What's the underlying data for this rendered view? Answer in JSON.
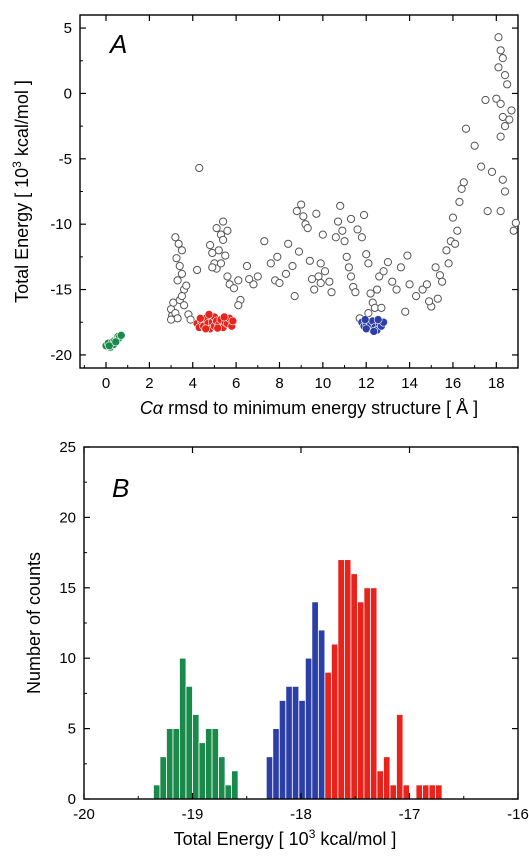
{
  "colors": {
    "green": "#1a8a4a",
    "red": "#e8231c",
    "blue": "#2b3fa6",
    "grey": "#555555",
    "axis": "#000000"
  },
  "chart_data": [
    {
      "type": "scatter",
      "panel_label": "A",
      "xlabel_prefix": "Cα",
      "xlabel_main": " rmsd to minimum energy structure  [ Å ]",
      "ylabel_pre": "Total Energy  [ 10",
      "ylabel_sup": "3",
      "ylabel_post": " kcal/mol ]",
      "xlim": [
        -1.2,
        19
      ],
      "ylim": [
        -21,
        6
      ],
      "xticks": [
        0,
        2,
        4,
        6,
        8,
        10,
        12,
        14,
        16,
        18
      ],
      "yticks": [
        -20,
        -15,
        -10,
        -5,
        0,
        5
      ],
      "series": [
        {
          "color_key": "grey",
          "filled": false,
          "points": [
            [
              3.0,
              -16.5
            ],
            [
              3.05,
              -17.0
            ],
            [
              3.1,
              -16.0
            ],
            [
              3.2,
              -16.8
            ],
            [
              3.3,
              -17.2
            ],
            [
              3.0,
              -17.3
            ],
            [
              3.4,
              -15.8
            ],
            [
              3.2,
              -11.0
            ],
            [
              3.35,
              -11.5
            ],
            [
              3.5,
              -12.0
            ],
            [
              3.25,
              -12.6
            ],
            [
              3.4,
              -13.2
            ],
            [
              3.5,
              -13.8
            ],
            [
              3.3,
              -14.3
            ],
            [
              3.6,
              -15.0
            ],
            [
              3.5,
              -15.5
            ],
            [
              3.8,
              -16.9
            ],
            [
              3.9,
              -17.3
            ],
            [
              3.6,
              -16.2
            ],
            [
              4.2,
              -13.5
            ],
            [
              4.3,
              -5.7
            ],
            [
              4.8,
              -11.6
            ],
            [
              4.9,
              -12.2
            ],
            [
              5.0,
              -13.0
            ],
            [
              5.1,
              -13.4
            ],
            [
              5.1,
              -10.3
            ],
            [
              5.3,
              -10.8
            ],
            [
              5.4,
              -11.2
            ],
            [
              5.2,
              -12.0
            ],
            [
              5.5,
              -12.4
            ],
            [
              5.3,
              -13.0
            ],
            [
              5.6,
              -14.0
            ],
            [
              5.7,
              -14.6
            ],
            [
              5.9,
              -14.9
            ],
            [
              6.1,
              -14.3
            ],
            [
              5.4,
              -9.8
            ],
            [
              5.6,
              -10.5
            ],
            [
              6.2,
              -15.8
            ],
            [
              6.1,
              -16.2
            ],
            [
              6.5,
              -13.2
            ],
            [
              6.8,
              -14.6
            ],
            [
              7.0,
              -14.0
            ],
            [
              7.3,
              -11.3
            ],
            [
              7.6,
              -13.0
            ],
            [
              7.8,
              -14.3
            ],
            [
              8.0,
              -14.5
            ],
            [
              8.3,
              -13.8
            ],
            [
              8.4,
              -11.5
            ],
            [
              8.6,
              -13.2
            ],
            [
              8.7,
              -15.5
            ],
            [
              8.8,
              -9.0
            ],
            [
              9.0,
              -8.5
            ],
            [
              9.1,
              -9.4
            ],
            [
              9.2,
              -10.0
            ],
            [
              9.3,
              -10.3
            ],
            [
              9.4,
              -12.8
            ],
            [
              9.5,
              -14.2
            ],
            [
              9.6,
              -15.0
            ],
            [
              9.8,
              -14.0
            ],
            [
              9.9,
              -13.0
            ],
            [
              9.7,
              -9.2
            ],
            [
              10.0,
              -10.8
            ],
            [
              10.1,
              -13.6
            ],
            [
              10.3,
              -14.4
            ],
            [
              10.4,
              -15.2
            ],
            [
              10.6,
              -11.0
            ],
            [
              10.7,
              -9.8
            ],
            [
              10.9,
              -10.5
            ],
            [
              11.0,
              -11.3
            ],
            [
              11.1,
              -12.5
            ],
            [
              11.2,
              -13.3
            ],
            [
              11.3,
              -14.0
            ],
            [
              11.4,
              -14.8
            ],
            [
              11.5,
              -15.2
            ],
            [
              11.3,
              -9.6
            ],
            [
              11.6,
              -10.4
            ],
            [
              11.8,
              -11.0
            ],
            [
              11.9,
              -9.3
            ],
            [
              12.0,
              -12.3
            ],
            [
              12.1,
              -13.0
            ],
            [
              12.2,
              -15.3
            ],
            [
              12.3,
              -16.0
            ],
            [
              12.4,
              -16.4
            ],
            [
              12.1,
              -16.8
            ],
            [
              12.5,
              -15.0
            ],
            [
              12.6,
              -14.0
            ],
            [
              12.8,
              -13.6
            ],
            [
              13.0,
              -12.9
            ],
            [
              13.2,
              -14.4
            ],
            [
              13.4,
              -15.0
            ],
            [
              13.6,
              -13.3
            ],
            [
              13.8,
              -16.7
            ],
            [
              14.0,
              -14.6
            ],
            [
              14.3,
              -15.5
            ],
            [
              14.6,
              -15.0
            ],
            [
              14.8,
              -14.6
            ],
            [
              15.0,
              -16.3
            ],
            [
              15.2,
              -13.3
            ],
            [
              15.4,
              -13.9
            ],
            [
              15.5,
              -14.4
            ],
            [
              15.3,
              -15.7
            ],
            [
              15.7,
              -12.0
            ],
            [
              15.8,
              -13.0
            ],
            [
              15.9,
              -11.3
            ],
            [
              16.0,
              -9.5
            ],
            [
              16.2,
              -10.5
            ],
            [
              16.4,
              -7.3
            ],
            [
              16.5,
              -6.8
            ],
            [
              16.3,
              -8.3
            ],
            [
              16.6,
              -2.7
            ],
            [
              17.0,
              -4.0
            ],
            [
              17.3,
              -5.6
            ],
            [
              17.5,
              -0.5
            ],
            [
              17.6,
              -9.0
            ],
            [
              17.8,
              -6.0
            ],
            [
              18.0,
              -0.4
            ],
            [
              18.1,
              4.3
            ],
            [
              18.2,
              3.3
            ],
            [
              18.3,
              2.7
            ],
            [
              18.1,
              2.0
            ],
            [
              18.4,
              1.4
            ],
            [
              18.5,
              0.7
            ],
            [
              18.2,
              -0.8
            ],
            [
              18.3,
              -1.8
            ],
            [
              18.4,
              -2.5
            ],
            [
              18.2,
              -3.3
            ],
            [
              18.3,
              -6.6
            ],
            [
              18.4,
              -7.5
            ],
            [
              18.2,
              -9.0
            ],
            [
              18.6,
              -2.0
            ],
            [
              18.8,
              -10.5
            ],
            [
              18.9,
              -9.9
            ],
            [
              18.7,
              -1.3
            ],
            [
              16.1,
              -11.5
            ],
            [
              14.9,
              -15.9
            ],
            [
              13.9,
              -12.4
            ],
            [
              12.7,
              -16.4
            ],
            [
              11.7,
              -17.2
            ],
            [
              10.8,
              -8.6
            ],
            [
              9.9,
              -14.5
            ],
            [
              8.9,
              -12.1
            ],
            [
              7.9,
              -12.5
            ],
            [
              6.6,
              -14.2
            ],
            [
              4.9,
              -13.3
            ],
            [
              3.7,
              -14.7
            ]
          ]
        },
        {
          "color_key": "green",
          "filled": true,
          "points": [
            [
              0.0,
              -19.3
            ],
            [
              0.1,
              -19.1
            ],
            [
              0.2,
              -19.4
            ],
            [
              0.3,
              -19.0
            ],
            [
              0.35,
              -19.2
            ],
            [
              0.4,
              -18.9
            ],
            [
              0.5,
              -18.8
            ],
            [
              0.55,
              -18.6
            ],
            [
              0.6,
              -18.7
            ],
            [
              0.7,
              -18.5
            ],
            [
              0.15,
              -19.3
            ],
            [
              0.45,
              -19.0
            ]
          ]
        },
        {
          "color_key": "red",
          "filled": true,
          "points": [
            [
              4.2,
              -17.6
            ],
            [
              4.3,
              -17.9
            ],
            [
              4.4,
              -17.4
            ],
            [
              4.5,
              -17.8
            ],
            [
              4.6,
              -17.2
            ],
            [
              4.7,
              -17.6
            ],
            [
              4.8,
              -18.0
            ],
            [
              4.9,
              -17.5
            ],
            [
              5.0,
              -17.1
            ],
            [
              5.0,
              -17.8
            ],
            [
              5.1,
              -17.4
            ],
            [
              5.2,
              -17.7
            ],
            [
              5.3,
              -17.3
            ],
            [
              5.4,
              -17.9
            ],
            [
              5.5,
              -17.5
            ],
            [
              5.6,
              -17.6
            ],
            [
              5.7,
              -17.2
            ],
            [
              5.8,
              -17.8
            ],
            [
              4.6,
              -18.0
            ],
            [
              5.15,
              -17.95
            ],
            [
              4.75,
              -16.9
            ],
            [
              5.45,
              -17.1
            ],
            [
              4.35,
              -17.2
            ],
            [
              5.85,
              -17.4
            ]
          ]
        },
        {
          "color_key": "blue",
          "filled": true,
          "points": [
            [
              11.8,
              -17.5
            ],
            [
              11.9,
              -17.8
            ],
            [
              12.0,
              -17.6
            ],
            [
              12.1,
              -18.0
            ],
            [
              12.2,
              -17.7
            ],
            [
              12.3,
              -17.4
            ],
            [
              12.4,
              -17.9
            ],
            [
              12.5,
              -18.1
            ],
            [
              12.6,
              -17.6
            ],
            [
              12.7,
              -17.8
            ],
            [
              12.8,
              -17.5
            ],
            [
              12.0,
              -18.0
            ],
            [
              12.35,
              -18.2
            ],
            [
              12.55,
              -17.3
            ],
            [
              11.95,
              -17.3
            ]
          ]
        }
      ]
    },
    {
      "type": "bar",
      "panel_label": "B",
      "xlabel_pre": "Total Energy  [ 10",
      "xlabel_sup": "3",
      "xlabel_post": " kcal/mol ]",
      "ylabel": "Number of counts",
      "xlim": [
        -20,
        -16
      ],
      "ylim": [
        0,
        25
      ],
      "xticks": [
        -20,
        -19,
        -18,
        -17,
        -16
      ],
      "yticks": [
        0,
        5,
        10,
        15,
        20,
        25
      ],
      "bin_width": 0.06,
      "series": [
        {
          "color_key": "green",
          "x": [
            -19.36,
            -19.3,
            -19.24,
            -19.18,
            -19.12,
            -19.06,
            -19.0,
            -18.94,
            -18.88,
            -18.82,
            -18.76,
            -18.7,
            -18.64
          ],
          "values": [
            1,
            3,
            5,
            5,
            10,
            8,
            6,
            4,
            5,
            5,
            3,
            1,
            2
          ]
        },
        {
          "color_key": "blue",
          "x": [
            -18.32,
            -18.26,
            -18.2,
            -18.14,
            -18.08,
            -18.02,
            -17.96,
            -17.9,
            -17.84,
            -17.78,
            -17.72,
            -17.66,
            -17.6,
            -17.54,
            -17.48
          ],
          "values": [
            3,
            5,
            7,
            8,
            8,
            7,
            10,
            14,
            12,
            4,
            3,
            2,
            2,
            1,
            1
          ]
        },
        {
          "color_key": "red",
          "x": [
            -17.78,
            -17.72,
            -17.66,
            -17.6,
            -17.54,
            -17.48,
            -17.42,
            -17.36,
            -17.3,
            -17.24,
            -17.18,
            -17.12,
            -17.06,
            -16.94,
            -16.88,
            -16.82,
            -16.76
          ],
          "values": [
            9,
            11,
            17,
            17,
            16,
            14,
            15,
            15,
            2,
            3,
            1,
            6,
            1,
            1,
            1,
            1,
            1
          ]
        }
      ]
    }
  ]
}
